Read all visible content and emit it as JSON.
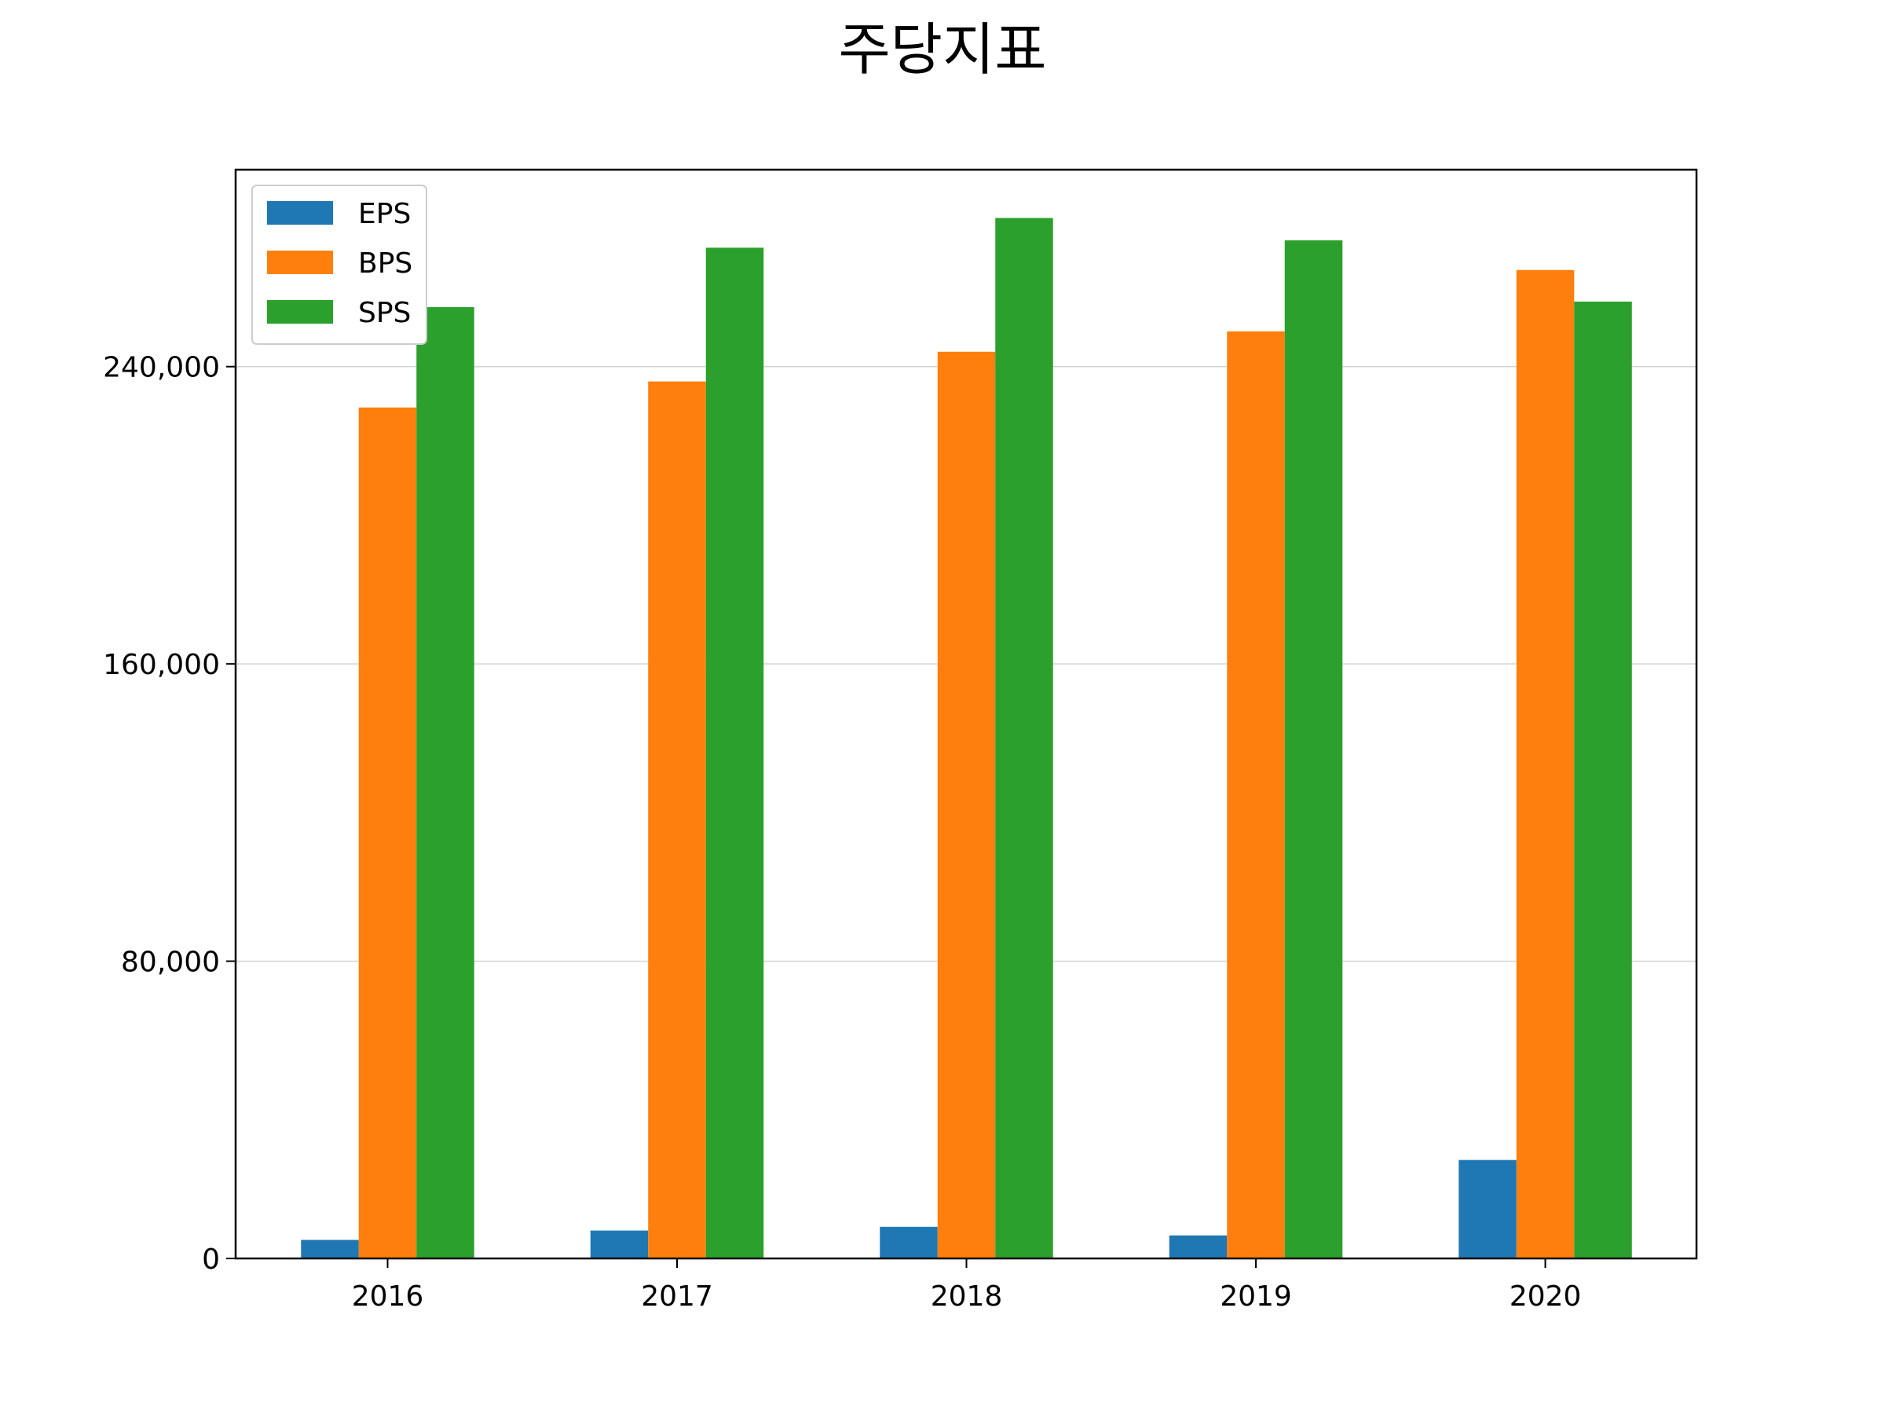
{
  "chart_data": {
    "type": "bar",
    "title": "주당지표",
    "xlabel": "",
    "ylabel": "",
    "categories": [
      "2016",
      "2017",
      "2018",
      "2019",
      "2020"
    ],
    "series": [
      {
        "name": "EPS",
        "color": "#1f77b4",
        "values": [
          5000,
          7500,
          8500,
          6200,
          26500
        ]
      },
      {
        "name": "BPS",
        "color": "#ff7f0e",
        "values": [
          229000,
          236000,
          244000,
          249500,
          266000
        ]
      },
      {
        "name": "SPS",
        "color": "#2ca02c",
        "values": [
          256000,
          272000,
          280000,
          274000,
          257500
        ]
      }
    ],
    "ylim": [
      0,
      293000
    ],
    "yticks": [
      0,
      80000,
      160000,
      240000
    ],
    "ytick_labels": [
      "0",
      "80,000",
      "160,000",
      "240,000"
    ],
    "grid": "y",
    "legend_position": "upper left"
  }
}
